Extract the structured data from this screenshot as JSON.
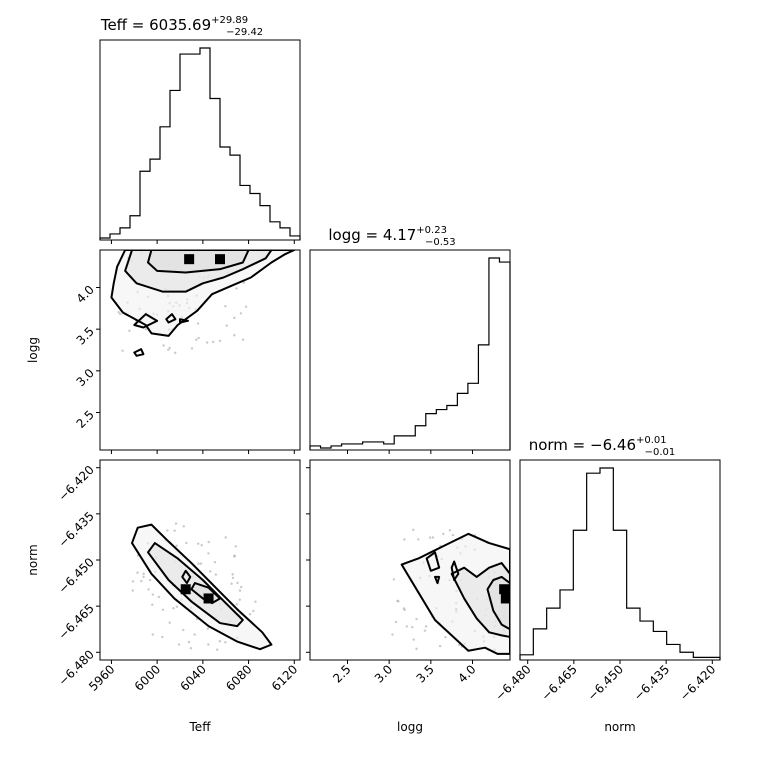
{
  "chart_data": {
    "type": "corner",
    "parameters": [
      {
        "name": "Teff",
        "median": "6035.69",
        "plus": "+29.89",
        "minus": "−29.42",
        "range": [
          5950,
          6125
        ],
        "ticks": [
          5960,
          6000,
          6040,
          6080,
          6120
        ],
        "tick_labels": [
          "5960",
          "6000",
          "6040",
          "6080",
          "6120"
        ],
        "hist_counts": [
          1,
          3,
          6,
          12,
          34,
          40,
          56,
          74,
          92,
          92,
          95,
          70,
          46,
          42,
          27,
          23,
          17,
          9,
          6,
          2
        ],
        "title_prefix": "Teff = "
      },
      {
        "name": "logg",
        "median": "4.17",
        "plus": "+0.23",
        "minus": "−0.53",
        "range": [
          2.05,
          4.45
        ],
        "ticks": [
          2.5,
          3.0,
          3.5,
          4.0
        ],
        "tick_labels": [
          "2.5",
          "3.0",
          "3.5",
          "4.0"
        ],
        "hist_counts": [
          2,
          1,
          2,
          3,
          3,
          4,
          4,
          3,
          7,
          7,
          12,
          18,
          20,
          22,
          28,
          33,
          52,
          95,
          93
        ],
        "title_prefix": "logg = "
      },
      {
        "name": "norm",
        "median": "−6.46",
        "plus": "+0.01",
        "minus": "−0.01",
        "range": [
          -6.4825,
          -6.4175
        ],
        "ticks": [
          -6.48,
          -6.465,
          -6.45,
          -6.435,
          -6.42
        ],
        "tick_labels": [
          "−6.480",
          "−6.465",
          "−6.450",
          "−6.435",
          "−6.420"
        ],
        "hist_counts": [
          2,
          12,
          20,
          27,
          50,
          72,
          74,
          50,
          20,
          15,
          11,
          6,
          3,
          1,
          1
        ],
        "title_prefix": "norm = "
      }
    ],
    "axis_labels": {
      "Teff": "Teff",
      "logg": "logg",
      "norm": "norm"
    },
    "contours": {
      "logg_vs_Teff": [
        [
          [
            5995,
            4.45
          ],
          [
            5992,
            4.3
          ],
          [
            6000,
            4.2
          ],
          [
            6025,
            4.18
          ],
          [
            6055,
            4.22
          ],
          [
            6075,
            4.3
          ],
          [
            6080,
            4.45
          ],
          [
            6040,
            4.45
          ],
          [
            5995,
            4.45
          ]
        ],
        [
          [
            5978,
            4.45
          ],
          [
            5972,
            4.2
          ],
          [
            5982,
            4.05
          ],
          [
            6005,
            3.95
          ],
          [
            6025,
            3.95
          ],
          [
            6040,
            4.05
          ],
          [
            6058,
            4.12
          ],
          [
            6075,
            4.22
          ],
          [
            6095,
            4.35
          ],
          [
            6100,
            4.45
          ],
          [
            5978,
            4.45
          ]
        ],
        [
          [
            5972,
            4.45
          ],
          [
            5965,
            4.25
          ],
          [
            5962,
            4.05
          ],
          [
            5960,
            3.88
          ],
          [
            5970,
            3.7
          ],
          [
            5990,
            3.55
          ],
          [
            5995,
            3.45
          ],
          [
            6010,
            3.42
          ],
          [
            6018,
            3.55
          ],
          [
            6035,
            3.72
          ],
          [
            6048,
            3.92
          ],
          [
            6065,
            4.02
          ],
          [
            6082,
            4.12
          ],
          [
            6100,
            4.3
          ],
          [
            6112,
            4.4
          ],
          [
            6120,
            4.45
          ],
          [
            5972,
            4.45
          ]
        ],
        [
          [
            5980,
            3.55
          ],
          [
            5990,
            3.68
          ],
          [
            6000,
            3.6
          ],
          [
            5988,
            3.52
          ],
          [
            5980,
            3.55
          ]
        ],
        [
          [
            6008,
            3.62
          ],
          [
            6013,
            3.68
          ],
          [
            6016,
            3.62
          ],
          [
            6010,
            3.58
          ],
          [
            6008,
            3.62
          ]
        ],
        [
          [
            6020,
            3.58
          ],
          [
            6027,
            3.6
          ],
          [
            6020,
            3.62
          ],
          [
            6020,
            3.58
          ]
        ],
        [
          [
            5980,
            3.22
          ],
          [
            5986,
            3.26
          ],
          [
            5988,
            3.2
          ],
          [
            5982,
            3.18
          ],
          [
            5980,
            3.22
          ]
        ]
      ],
      "norm_vs_Teff": [
        [
          [
            6030,
            -6.4595
          ],
          [
            6040,
            -6.4625
          ],
          [
            6048,
            -6.464
          ],
          [
            6055,
            -6.4625
          ],
          [
            6045,
            -6.459
          ],
          [
            6033,
            -6.4575
          ],
          [
            6030,
            -6.4595
          ]
        ],
        [
          [
            5992,
            -6.4475
          ],
          [
            6010,
            -6.4565
          ],
          [
            6030,
            -6.4635
          ],
          [
            6055,
            -6.4705
          ],
          [
            6070,
            -6.4715
          ],
          [
            6075,
            -6.4695
          ],
          [
            6060,
            -6.464
          ],
          [
            6040,
            -6.4565
          ],
          [
            6018,
            -6.4495
          ],
          [
            5998,
            -6.4445
          ],
          [
            5992,
            -6.4475
          ]
        ],
        [
          [
            5983,
            -6.4395
          ],
          [
            5978,
            -6.4445
          ],
          [
            5995,
            -6.4545
          ],
          [
            6015,
            -6.4625
          ],
          [
            6045,
            -6.4715
          ],
          [
            6070,
            -6.4765
          ],
          [
            6090,
            -6.479
          ],
          [
            6100,
            -6.4775
          ],
          [
            6092,
            -6.4735
          ],
          [
            6070,
            -6.466
          ],
          [
            6050,
            -6.4585
          ],
          [
            6030,
            -6.451
          ],
          [
            6010,
            -6.444
          ],
          [
            5995,
            -6.4385
          ],
          [
            5983,
            -6.4395
          ]
        ],
        [
          [
            6022,
            -6.4555
          ],
          [
            6026,
            -6.4575
          ],
          [
            6029,
            -6.4555
          ],
          [
            6025,
            -6.4535
          ],
          [
            6022,
            -6.4555
          ]
        ]
      ],
      "norm_vs_logg": [
        [
          [
            4.18,
            -6.4595
          ],
          [
            4.25,
            -6.4665
          ],
          [
            4.35,
            -6.471
          ],
          [
            4.45,
            -6.4725
          ],
          [
            4.45,
            -6.4575
          ],
          [
            4.35,
            -6.4555
          ],
          [
            4.25,
            -6.4565
          ],
          [
            4.18,
            -6.4595
          ]
        ],
        [
          [
            3.75,
            -6.4545
          ],
          [
            3.9,
            -6.4625
          ],
          [
            4.05,
            -6.469
          ],
          [
            4.2,
            -6.4735
          ],
          [
            4.35,
            -6.4745
          ],
          [
            4.45,
            -6.475
          ],
          [
            4.45,
            -6.4545
          ],
          [
            4.35,
            -6.451
          ],
          [
            4.2,
            -6.4525
          ],
          [
            4.05,
            -6.4555
          ],
          [
            3.9,
            -6.4525
          ],
          [
            3.75,
            -6.4545
          ]
        ],
        [
          [
            3.15,
            -6.4515
          ],
          [
            3.35,
            -6.4605
          ],
          [
            3.55,
            -6.4695
          ],
          [
            3.75,
            -6.4745
          ],
          [
            3.95,
            -6.4795
          ],
          [
            4.15,
            -6.4785
          ],
          [
            4.3,
            -6.4805
          ],
          [
            4.45,
            -6.4805
          ],
          [
            4.45,
            -6.4465
          ],
          [
            4.2,
            -6.4445
          ],
          [
            3.95,
            -6.4415
          ],
          [
            3.8,
            -6.4435
          ],
          [
            3.65,
            -6.4455
          ],
          [
            3.5,
            -6.4475
          ],
          [
            3.35,
            -6.4495
          ],
          [
            3.15,
            -6.4515
          ]
        ],
        [
          [
            3.45,
            -6.4495
          ],
          [
            3.5,
            -6.4535
          ],
          [
            3.6,
            -6.4525
          ],
          [
            3.55,
            -6.4475
          ],
          [
            3.45,
            -6.4495
          ]
        ],
        [
          [
            3.75,
            -6.4525
          ],
          [
            3.78,
            -6.4565
          ],
          [
            3.83,
            -6.4545
          ],
          [
            3.78,
            -6.4505
          ],
          [
            3.75,
            -6.4525
          ]
        ],
        [
          [
            3.55,
            -6.4555
          ],
          [
            3.58,
            -6.4575
          ],
          [
            3.6,
            -6.4555
          ],
          [
            3.55,
            -6.4555
          ]
        ]
      ]
    },
    "density_peaks": {
      "logg_vs_Teff": [
        [
          6028,
          4.34
        ],
        [
          6055,
          4.34
        ]
      ],
      "norm_vs_Teff": [
        [
          6025,
          -6.4595
        ],
        [
          6045,
          -6.4625
        ]
      ],
      "norm_vs_logg": [
        [
          4.38,
          -6.4595
        ],
        [
          4.4,
          -6.4625
        ]
      ]
    },
    "grid": false,
    "legend": "none"
  }
}
